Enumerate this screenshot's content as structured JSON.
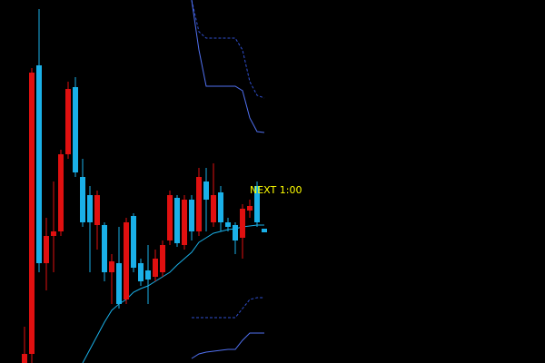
{
  "chart_data": {
    "type": "candlestick",
    "annotation": "NEXT 1:00",
    "annotation_color": "#ffff00",
    "up_color": "#e01010",
    "down_color": "#1ab0e8",
    "ylim": [
      0,
      400
    ],
    "open": [
      0,
      10,
      328,
      110,
      140,
      145,
      230,
      304,
      205,
      185,
      152,
      152,
      100,
      110,
      70,
      162,
      110,
      102,
      95,
      100,
      135,
      182,
      130,
      180,
      145,
      200,
      155,
      188,
      155,
      152,
      138,
      168,
      195,
      148
    ],
    "high": [
      40,
      325,
      390,
      160,
      200,
      235,
      310,
      315,
      225,
      195,
      190,
      155,
      120,
      150,
      160,
      165,
      115,
      130,
      125,
      135,
      190,
      185,
      185,
      185,
      215,
      215,
      220,
      195,
      160,
      155,
      175,
      180,
      200,
      148
    ],
    "low": [
      0,
      0,
      100,
      80,
      100,
      140,
      225,
      205,
      150,
      100,
      125,
      90,
      65,
      60,
      65,
      100,
      85,
      65,
      90,
      95,
      130,
      128,
      125,
      135,
      140,
      145,
      150,
      145,
      145,
      120,
      115,
      160,
      150,
      144
    ],
    "close": [
      10,
      320,
      110,
      140,
      145,
      230,
      302,
      210,
      155,
      155,
      185,
      100,
      112,
      65,
      155,
      105,
      90,
      92,
      115,
      130,
      185,
      132,
      180,
      145,
      205,
      180,
      185,
      155,
      150,
      135,
      170,
      173,
      155,
      144
    ],
    "series": [
      {
        "color": "#1ab0e8",
        "dash": false,
        "values": [
          null,
          null,
          null,
          null,
          null,
          null,
          null,
          null,
          0,
          15,
          30,
          45,
          58,
          65,
          70,
          78,
          82,
          85,
          90,
          95,
          100,
          108,
          115,
          122,
          133,
          138,
          143,
          145,
          147,
          148,
          150,
          151,
          152,
          152
        ]
      },
      {
        "color": "#3050d0",
        "dash": true,
        "values": [
          null,
          null,
          null,
          null,
          null,
          null,
          null,
          null,
          null,
          null,
          null,
          null,
          null,
          null,
          null,
          null,
          null,
          null,
          null,
          null,
          null,
          null,
          null,
          400,
          365,
          358,
          358,
          358,
          358,
          358,
          345,
          310,
          295,
          292
        ]
      },
      {
        "color": "#5070f0",
        "dash": false,
        "values": [
          null,
          null,
          null,
          null,
          null,
          null,
          null,
          null,
          null,
          null,
          null,
          null,
          null,
          null,
          null,
          null,
          null,
          null,
          null,
          null,
          null,
          null,
          null,
          400,
          345,
          305,
          305,
          305,
          305,
          305,
          300,
          270,
          255,
          254
        ]
      },
      {
        "color": "#3050d0",
        "dash": true,
        "values": [
          null,
          null,
          null,
          null,
          null,
          null,
          null,
          null,
          null,
          null,
          null,
          null,
          null,
          null,
          null,
          null,
          null,
          null,
          null,
          null,
          null,
          null,
          null,
          50,
          50,
          50,
          50,
          50,
          50,
          50,
          60,
          70,
          72,
          72
        ]
      },
      {
        "color": "#5070f0",
        "dash": false,
        "values": [
          null,
          null,
          null,
          null,
          null,
          null,
          null,
          null,
          null,
          null,
          null,
          null,
          null,
          null,
          null,
          null,
          null,
          null,
          null,
          null,
          null,
          null,
          null,
          5,
          10,
          12,
          13,
          14,
          15,
          15,
          25,
          33,
          33,
          33
        ]
      }
    ]
  }
}
